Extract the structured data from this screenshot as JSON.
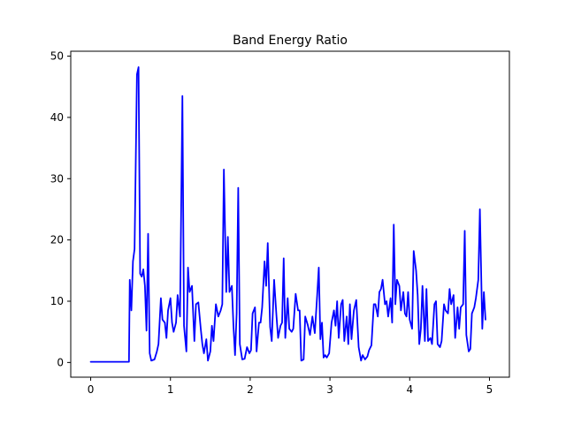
{
  "chart_data": {
    "type": "line",
    "title": "Band Energy Ratio",
    "xlabel": "",
    "ylabel": "",
    "xlim": [
      -0.25,
      5.25
    ],
    "ylim": [
      -2.4,
      50.8
    ],
    "xticks": [
      0,
      1,
      2,
      3,
      4,
      5
    ],
    "yticks": [
      0,
      10,
      20,
      30,
      40,
      50
    ],
    "grid": false,
    "legend": "none",
    "series": [
      {
        "color": "#0000ff",
        "points": [
          [
            0.0,
            0.1
          ],
          [
            0.25,
            0.1
          ],
          [
            0.48,
            0.1
          ],
          [
            0.49,
            13.5
          ],
          [
            0.51,
            8.5
          ],
          [
            0.53,
            16.5
          ],
          [
            0.55,
            18.5
          ],
          [
            0.58,
            47.0
          ],
          [
            0.6,
            48.2
          ],
          [
            0.62,
            14.5
          ],
          [
            0.64,
            14.0
          ],
          [
            0.66,
            15.2
          ],
          [
            0.68,
            12.5
          ],
          [
            0.7,
            5.2
          ],
          [
            0.72,
            21.0
          ],
          [
            0.74,
            1.5
          ],
          [
            0.76,
            0.3
          ],
          [
            0.8,
            0.5
          ],
          [
            0.83,
            1.8
          ],
          [
            0.85,
            3.0
          ],
          [
            0.88,
            10.5
          ],
          [
            0.9,
            7.0
          ],
          [
            0.93,
            6.5
          ],
          [
            0.95,
            4.0
          ],
          [
            0.97,
            8.5
          ],
          [
            1.0,
            10.5
          ],
          [
            1.02,
            6.5
          ],
          [
            1.04,
            5.0
          ],
          [
            1.07,
            6.5
          ],
          [
            1.09,
            11.0
          ],
          [
            1.12,
            7.5
          ],
          [
            1.15,
            43.5
          ],
          [
            1.17,
            6.0
          ],
          [
            1.2,
            1.8
          ],
          [
            1.22,
            15.5
          ],
          [
            1.24,
            11.5
          ],
          [
            1.27,
            12.5
          ],
          [
            1.3,
            3.5
          ],
          [
            1.32,
            9.5
          ],
          [
            1.35,
            9.8
          ],
          [
            1.38,
            5.5
          ],
          [
            1.4,
            3.0
          ],
          [
            1.42,
            1.5
          ],
          [
            1.45,
            3.8
          ],
          [
            1.47,
            0.3
          ],
          [
            1.5,
            1.8
          ],
          [
            1.52,
            6.0
          ],
          [
            1.54,
            3.5
          ],
          [
            1.57,
            9.5
          ],
          [
            1.6,
            7.5
          ],
          [
            1.63,
            8.5
          ],
          [
            1.65,
            9.5
          ],
          [
            1.67,
            31.5
          ],
          [
            1.7,
            11.5
          ],
          [
            1.72,
            20.5
          ],
          [
            1.74,
            11.5
          ],
          [
            1.77,
            12.5
          ],
          [
            1.79,
            6.0
          ],
          [
            1.81,
            1.2
          ],
          [
            1.83,
            8.0
          ],
          [
            1.85,
            28.5
          ],
          [
            1.87,
            3.0
          ],
          [
            1.9,
            0.5
          ],
          [
            1.93,
            0.6
          ],
          [
            1.96,
            2.5
          ],
          [
            1.99,
            1.5
          ],
          [
            2.01,
            2.0
          ],
          [
            2.03,
            8.0
          ],
          [
            2.06,
            9.0
          ],
          [
            2.08,
            1.8
          ],
          [
            2.11,
            6.5
          ],
          [
            2.13,
            6.5
          ],
          [
            2.15,
            9.0
          ],
          [
            2.18,
            16.5
          ],
          [
            2.2,
            12.5
          ],
          [
            2.22,
            19.5
          ],
          [
            2.25,
            5.8
          ],
          [
            2.27,
            3.5
          ],
          [
            2.3,
            13.5
          ],
          [
            2.33,
            7.5
          ],
          [
            2.35,
            4.0
          ],
          [
            2.38,
            6.0
          ],
          [
            2.4,
            6.5
          ],
          [
            2.42,
            17.0
          ],
          [
            2.44,
            4.0
          ],
          [
            2.47,
            10.5
          ],
          [
            2.49,
            5.5
          ],
          [
            2.52,
            5.0
          ],
          [
            2.54,
            5.5
          ],
          [
            2.57,
            11.2
          ],
          [
            2.6,
            8.5
          ],
          [
            2.62,
            8.5
          ],
          [
            2.64,
            0.3
          ],
          [
            2.67,
            0.5
          ],
          [
            2.69,
            7.5
          ],
          [
            2.72,
            6.2
          ],
          [
            2.75,
            4.5
          ],
          [
            2.78,
            7.5
          ],
          [
            2.81,
            4.8
          ],
          [
            2.84,
            11.0
          ],
          [
            2.86,
            15.5
          ],
          [
            2.88,
            3.8
          ],
          [
            2.9,
            6.5
          ],
          [
            2.92,
            0.8
          ],
          [
            2.94,
            1.2
          ],
          [
            2.96,
            0.8
          ],
          [
            2.99,
            1.5
          ],
          [
            3.02,
            6.5
          ],
          [
            3.05,
            8.5
          ],
          [
            3.07,
            6.0
          ],
          [
            3.09,
            10.0
          ],
          [
            3.11,
            4.0
          ],
          [
            3.14,
            9.5
          ],
          [
            3.16,
            10.2
          ],
          [
            3.18,
            3.5
          ],
          [
            3.21,
            7.5
          ],
          [
            3.23,
            3.0
          ],
          [
            3.25,
            9.5
          ],
          [
            3.27,
            3.8
          ],
          [
            3.3,
            8.5
          ],
          [
            3.33,
            10.2
          ],
          [
            3.36,
            2.5
          ],
          [
            3.39,
            0.3
          ],
          [
            3.41,
            1.2
          ],
          [
            3.44,
            0.5
          ],
          [
            3.47,
            1.0
          ],
          [
            3.49,
            2.0
          ],
          [
            3.52,
            2.8
          ],
          [
            3.55,
            9.5
          ],
          [
            3.57,
            9.5
          ],
          [
            3.6,
            7.5
          ],
          [
            3.62,
            11.5
          ],
          [
            3.64,
            12.0
          ],
          [
            3.66,
            13.5
          ],
          [
            3.69,
            9.5
          ],
          [
            3.71,
            10.0
          ],
          [
            3.73,
            7.5
          ],
          [
            3.76,
            10.5
          ],
          [
            3.78,
            6.5
          ],
          [
            3.8,
            22.5
          ],
          [
            3.82,
            9.5
          ],
          [
            3.84,
            13.5
          ],
          [
            3.87,
            12.5
          ],
          [
            3.89,
            8.5
          ],
          [
            3.92,
            11.5
          ],
          [
            3.94,
            8.0
          ],
          [
            3.96,
            7.5
          ],
          [
            3.98,
            11.5
          ],
          [
            4.0,
            7.0
          ],
          [
            4.03,
            5.5
          ],
          [
            4.05,
            18.2
          ],
          [
            4.08,
            15.0
          ],
          [
            4.1,
            11.0
          ],
          [
            4.12,
            3.0
          ],
          [
            4.14,
            5.5
          ],
          [
            4.16,
            12.5
          ],
          [
            4.19,
            3.5
          ],
          [
            4.21,
            12.0
          ],
          [
            4.23,
            3.5
          ],
          [
            4.26,
            4.0
          ],
          [
            4.28,
            3.0
          ],
          [
            4.31,
            9.5
          ],
          [
            4.33,
            10.0
          ],
          [
            4.35,
            3.0
          ],
          [
            4.38,
            2.5
          ],
          [
            4.4,
            3.5
          ],
          [
            4.43,
            9.5
          ],
          [
            4.45,
            8.5
          ],
          [
            4.48,
            8.0
          ],
          [
            4.5,
            12.0
          ],
          [
            4.52,
            9.5
          ],
          [
            4.55,
            11.0
          ],
          [
            4.57,
            4.0
          ],
          [
            4.6,
            9.0
          ],
          [
            4.62,
            5.5
          ],
          [
            4.64,
            9.0
          ],
          [
            4.67,
            9.5
          ],
          [
            4.69,
            21.5
          ],
          [
            4.71,
            4.5
          ],
          [
            4.74,
            1.8
          ],
          [
            4.76,
            2.2
          ],
          [
            4.78,
            8.0
          ],
          [
            4.81,
            9.0
          ],
          [
            4.83,
            10.5
          ],
          [
            4.86,
            13.5
          ],
          [
            4.88,
            25.0
          ],
          [
            4.91,
            5.5
          ],
          [
            4.93,
            11.5
          ],
          [
            4.95,
            7.0
          ]
        ]
      }
    ]
  }
}
